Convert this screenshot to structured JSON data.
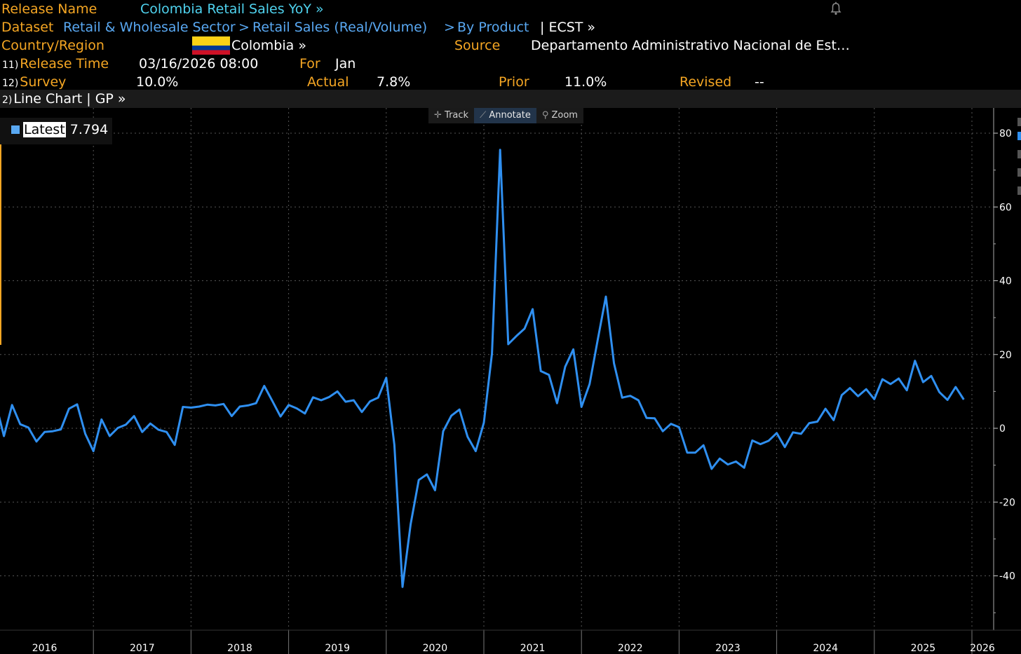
{
  "header": {
    "release_name_label": "Release Name",
    "release_name_value": "Colombia Retail Sales YoY »",
    "dataset_label": "Dataset",
    "dataset_path_1": "Retail & Wholesale Sector",
    "dataset_sep_1": ">",
    "dataset_path_2": "Retail Sales (Real/Volume)",
    "dataset_sep_2": ">",
    "dataset_path_3": "By Product",
    "dataset_ticker": "| ECST »",
    "country_label": "Country/Region",
    "country_value": "Colombia »",
    "source_label": "Source",
    "source_value": "Departamento Administrativo Nacional de Est…",
    "release_time_num": "11)",
    "release_time_label": "Release Time",
    "release_time_value": "03/16/2026 08:00",
    "for_label": "For",
    "for_value": "Jan",
    "survey_num": "12)",
    "survey_label": "Survey",
    "survey_value": "10.0%",
    "actual_label": "Actual",
    "actual_value": "7.8%",
    "prior_label": "Prior",
    "prior_value": "11.0%",
    "revised_label": "Revised",
    "revised_value": "--",
    "bell_icon": "bell-icon"
  },
  "chart_header": {
    "num": "2)",
    "title": "Line Chart | GP »"
  },
  "toolbar": {
    "track": "Track",
    "annotate": "Annotate",
    "zoom": "Zoom"
  },
  "legend": {
    "label": "Latest",
    "value": "7.794"
  },
  "colors": {
    "label_orange": "#f5a623",
    "link_cyan": "#4fd2ee",
    "line_blue": "#2f8ff0",
    "background": "#000000"
  },
  "chart_data": {
    "type": "line",
    "x_years": [
      "2016",
      "2017",
      "2018",
      "2019",
      "2020",
      "2021",
      "2022",
      "2023",
      "2024",
      "2025",
      "2026"
    ],
    "y_ticks": [
      80,
      60,
      40,
      20,
      0,
      -20,
      -40
    ],
    "ylim": [
      -55,
      82
    ],
    "grid": true,
    "series": [
      {
        "x_start": "2015-12",
        "frequency": "monthly",
        "values": [
          3.6,
          6.7,
          -2.1,
          6.3,
          1.1,
          0.2,
          -3.6,
          -1.0,
          -0.8,
          -0.3,
          5.3,
          6.5,
          -1.5,
          -6.2,
          2.4,
          -2.1,
          0.1,
          1.0,
          3.3,
          -1.0,
          1.3,
          -0.4,
          -1.0,
          -4.5,
          5.8,
          5.6,
          5.9,
          6.4,
          6.2,
          6.6,
          3.3,
          5.9,
          6.2,
          6.8,
          11.5,
          7.4,
          3.2,
          6.3,
          5.4,
          4.0,
          8.4,
          7.6,
          8.5,
          10.0,
          7.2,
          7.6,
          4.4,
          7.3,
          8.3,
          13.7,
          -4.5,
          -43.0,
          -26.0,
          -14.0,
          -12.5,
          -16.8,
          -0.8,
          3.4,
          5.1,
          -2.3,
          -6.2,
          1.5,
          20.3,
          75.5,
          22.8,
          25.0,
          27.0,
          32.3,
          15.5,
          14.5,
          6.8,
          16.7,
          21.4,
          5.8,
          12.0,
          24.0,
          35.7,
          17.6,
          8.3,
          8.8,
          7.6,
          2.8,
          2.7,
          -0.8,
          1.2,
          0.3,
          -6.6,
          -6.6,
          -4.6,
          -11.0,
          -8.2,
          -9.8,
          -9.0,
          -10.7,
          -3.3,
          -4.3,
          -3.4,
          -1.3,
          -5.1,
          -1.1,
          -1.5,
          1.4,
          1.8,
          5.3,
          2.2,
          9.0,
          10.9,
          8.7,
          10.6,
          7.9,
          13.3,
          12.0,
          13.5,
          10.3,
          18.3,
          12.5,
          14.2,
          9.8,
          7.7,
          11.2,
          7.8
        ]
      }
    ]
  }
}
